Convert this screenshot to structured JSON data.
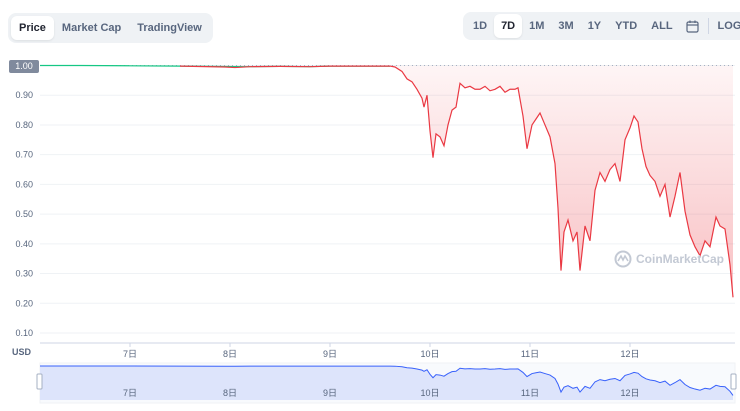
{
  "tabs_left": [
    {
      "label": "Price",
      "active": true
    },
    {
      "label": "Market Cap",
      "active": false
    },
    {
      "label": "TradingView",
      "active": false
    }
  ],
  "tabs_right": [
    {
      "label": "1D",
      "active": false
    },
    {
      "label": "7D",
      "active": true
    },
    {
      "label": "1M",
      "active": false
    },
    {
      "label": "3M",
      "active": false
    },
    {
      "label": "1Y",
      "active": false
    },
    {
      "label": "YTD",
      "active": false
    },
    {
      "label": "ALL",
      "active": false
    }
  ],
  "calendar_icon": "calendar-icon",
  "log_label": "LOG",
  "currency_label": "USD",
  "watermark": "CoinMarketCap",
  "current_price_label": "1.00",
  "colors": {
    "up": "#16c784",
    "down": "#ea3943",
    "grid": "#eff2f5",
    "navigator_line": "#3861fb",
    "navigator_fill": "#dde4fb"
  },
  "chart_data": {
    "type": "line",
    "x_unit": "day",
    "x_ticks": [
      {
        "x": 7.0,
        "label": "7日"
      },
      {
        "x": 8.0,
        "label": "8日"
      },
      {
        "x": 9.0,
        "label": "9日"
      },
      {
        "x": 10.0,
        "label": "10日"
      },
      {
        "x": 11.0,
        "label": "11日"
      },
      {
        "x": 12.0,
        "label": "12日"
      }
    ],
    "y_ticks": [
      0.1,
      0.2,
      0.3,
      0.4,
      0.5,
      0.6,
      0.7,
      0.8,
      0.9,
      1.0
    ],
    "ylim": [
      0.1,
      1.0
    ],
    "xlim": [
      6.1,
      13.05
    ],
    "baseline": 1.0,
    "series": [
      {
        "points": [
          [
            6.1,
            1.0
          ],
          [
            6.5,
            1.0
          ],
          [
            7.0,
            0.999
          ],
          [
            7.5,
            0.998
          ],
          [
            7.95,
            0.995
          ],
          [
            8.05,
            0.993
          ],
          [
            8.2,
            0.996
          ],
          [
            8.5,
            0.997
          ],
          [
            8.8,
            0.996
          ],
          [
            9.0,
            0.998
          ],
          [
            9.3,
            0.998
          ],
          [
            9.6,
            0.998
          ],
          [
            9.65,
            0.995
          ],
          [
            9.72,
            0.98
          ],
          [
            9.77,
            0.955
          ],
          [
            9.82,
            0.945
          ],
          [
            9.87,
            0.92
          ],
          [
            9.92,
            0.89
          ],
          [
            9.94,
            0.86
          ],
          [
            9.97,
            0.9
          ],
          [
            10.0,
            0.78
          ],
          [
            10.03,
            0.69
          ],
          [
            10.06,
            0.77
          ],
          [
            10.1,
            0.76
          ],
          [
            10.14,
            0.73
          ],
          [
            10.18,
            0.8
          ],
          [
            10.22,
            0.85
          ],
          [
            10.26,
            0.86
          ],
          [
            10.3,
            0.94
          ],
          [
            10.35,
            0.925
          ],
          [
            10.4,
            0.93
          ],
          [
            10.45,
            0.92
          ],
          [
            10.5,
            0.92
          ],
          [
            10.55,
            0.93
          ],
          [
            10.6,
            0.915
          ],
          [
            10.65,
            0.92
          ],
          [
            10.7,
            0.93
          ],
          [
            10.75,
            0.91
          ],
          [
            10.8,
            0.92
          ],
          [
            10.85,
            0.92
          ],
          [
            10.88,
            0.925
          ],
          [
            10.93,
            0.83
          ],
          [
            10.97,
            0.72
          ],
          [
            11.02,
            0.8
          ],
          [
            11.06,
            0.82
          ],
          [
            11.1,
            0.84
          ],
          [
            11.15,
            0.8
          ],
          [
            11.2,
            0.76
          ],
          [
            11.25,
            0.67
          ],
          [
            11.28,
            0.52
          ],
          [
            11.31,
            0.31
          ],
          [
            11.34,
            0.44
          ],
          [
            11.38,
            0.48
          ],
          [
            11.43,
            0.41
          ],
          [
            11.47,
            0.44
          ],
          [
            11.5,
            0.31
          ],
          [
            11.55,
            0.46
          ],
          [
            11.6,
            0.41
          ],
          [
            11.65,
            0.58
          ],
          [
            11.7,
            0.64
          ],
          [
            11.75,
            0.61
          ],
          [
            11.8,
            0.65
          ],
          [
            11.85,
            0.67
          ],
          [
            11.9,
            0.61
          ],
          [
            11.95,
            0.75
          ],
          [
            12.0,
            0.79
          ],
          [
            12.04,
            0.83
          ],
          [
            12.08,
            0.81
          ],
          [
            12.12,
            0.72
          ],
          [
            12.16,
            0.66
          ],
          [
            12.2,
            0.63
          ],
          [
            12.25,
            0.61
          ],
          [
            12.3,
            0.56
          ],
          [
            12.35,
            0.6
          ],
          [
            12.4,
            0.49
          ],
          [
            12.45,
            0.56
          ],
          [
            12.5,
            0.64
          ],
          [
            12.55,
            0.51
          ],
          [
            12.6,
            0.43
          ],
          [
            12.65,
            0.39
          ],
          [
            12.7,
            0.36
          ],
          [
            12.75,
            0.41
          ],
          [
            12.8,
            0.39
          ],
          [
            12.86,
            0.49
          ],
          [
            12.9,
            0.46
          ],
          [
            12.95,
            0.45
          ],
          [
            13.0,
            0.33
          ],
          [
            13.03,
            0.22
          ]
        ]
      }
    ]
  },
  "navigator": {
    "x_ticks": [
      {
        "x": 7.0,
        "label": "7日"
      },
      {
        "x": 8.0,
        "label": "8日"
      },
      {
        "x": 9.0,
        "label": "9日"
      },
      {
        "x": 10.0,
        "label": "10日"
      },
      {
        "x": 11.0,
        "label": "11日"
      },
      {
        "x": 12.0,
        "label": "12日"
      }
    ]
  }
}
